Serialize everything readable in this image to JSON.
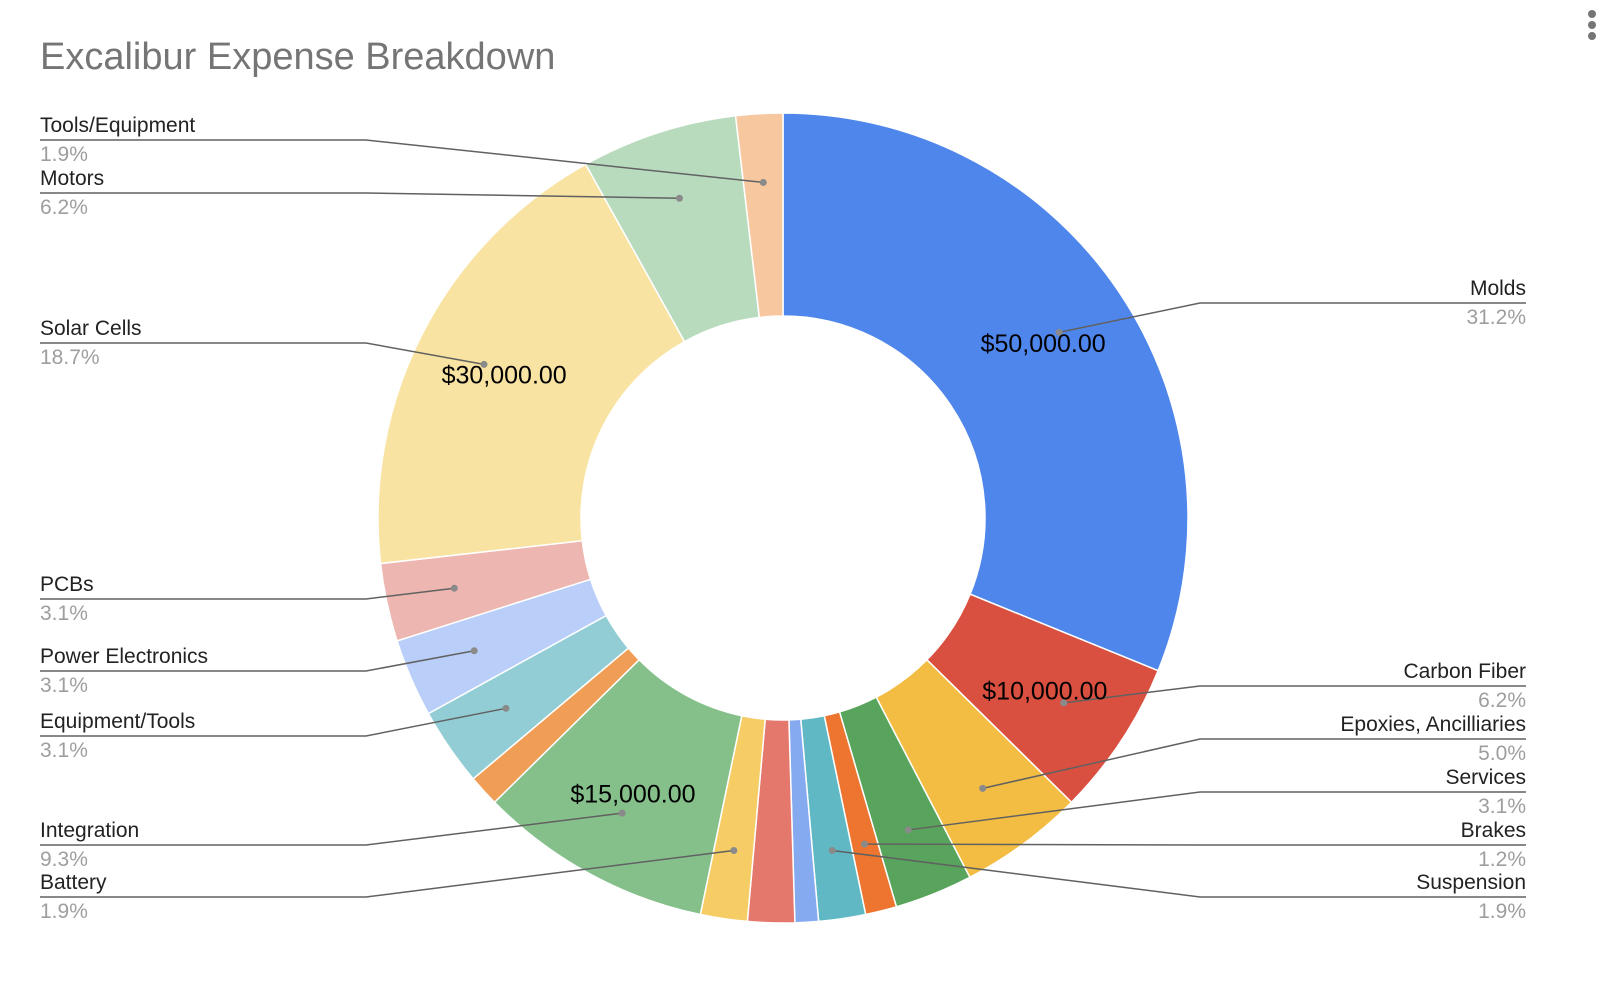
{
  "chart_data": {
    "type": "pie",
    "style": "donut",
    "title": "Excalibur Expense Breakdown",
    "legend": "labeled",
    "slices": [
      {
        "label": "Molds",
        "value": 50000,
        "percent": "31.2%",
        "color": "#4f86ec",
        "value_label": "$50,000.00"
      },
      {
        "label": "Carbon Fiber",
        "value": 10000,
        "percent": "6.2%",
        "color": "#da5040",
        "value_label": "$10,000.00"
      },
      {
        "label": "Epoxies, Ancilliaries",
        "value": 8000,
        "percent": "5.0%",
        "color": "#f2bd42",
        "value_label": ""
      },
      {
        "label": "Services",
        "value": 5000,
        "percent": "3.1%",
        "color": "#58a45c",
        "value_label": ""
      },
      {
        "label": "Brakes",
        "value": 2000,
        "percent": "1.2%",
        "color": "#ed752f",
        "value_label": ""
      },
      {
        "label": "Suspension",
        "value": 3000,
        "percent": "1.9%",
        "color": "#5fb8c3",
        "value_label": ""
      },
      {
        "label": "",
        "value": 1500,
        "percent": "",
        "color": "#86aaf0",
        "value_label": ""
      },
      {
        "label": "",
        "value": 3000,
        "percent": "",
        "color": "#e5786d",
        "value_label": ""
      },
      {
        "label": "Battery",
        "value": 3000,
        "percent": "1.9%",
        "color": "#f6cd64",
        "value_label": ""
      },
      {
        "label": "Integration",
        "value": 15000,
        "percent": "9.3%",
        "color": "#85c08b",
        "value_label": "$15,000.00"
      },
      {
        "label": "",
        "value": 2000,
        "percent": "",
        "color": "#f09d55",
        "value_label": ""
      },
      {
        "label": "Equipment/Tools",
        "value": 5000,
        "percent": "3.1%",
        "color": "#92cdd5",
        "value_label": ""
      },
      {
        "label": "Power Electronics",
        "value": 5000,
        "percent": "3.1%",
        "color": "#b9cef8",
        "value_label": ""
      },
      {
        "label": "PCBs",
        "value": 5000,
        "percent": "3.1%",
        "color": "#edb6b0",
        "value_label": ""
      },
      {
        "label": "Solar Cells",
        "value": 30000,
        "percent": "18.7%",
        "color": "#f8e3a2",
        "value_label": "$30,000.00"
      },
      {
        "label": "Motors",
        "value": 10000,
        "percent": "6.2%",
        "color": "#b8dbbe",
        "value_label": ""
      },
      {
        "label": "Tools/Equipment",
        "value": 3000,
        "percent": "1.9%",
        "color": "#f7c7a0",
        "value_label": ""
      }
    ]
  },
  "menu": {
    "icon": "more-vert-icon"
  }
}
